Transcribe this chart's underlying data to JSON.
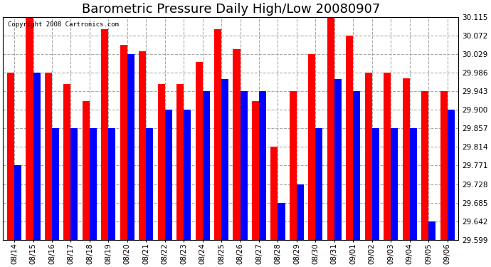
{
  "title": "Barometric Pressure Daily High/Low 20080907",
  "copyright": "Copyright 2008 Cartronics.com",
  "categories": [
    "08/14",
    "08/15",
    "08/16",
    "08/17",
    "08/18",
    "08/19",
    "08/20",
    "08/21",
    "08/22",
    "08/23",
    "08/24",
    "08/25",
    "08/26",
    "08/27",
    "08/28",
    "08/29",
    "08/30",
    "08/31",
    "09/01",
    "09/02",
    "09/03",
    "09/04",
    "09/05",
    "09/06"
  ],
  "highs": [
    29.986,
    30.115,
    29.986,
    29.96,
    29.92,
    30.086,
    30.05,
    30.036,
    29.96,
    29.96,
    30.01,
    30.086,
    30.04,
    29.92,
    29.814,
    29.943,
    30.029,
    30.115,
    30.072,
    29.986,
    29.986,
    29.972,
    29.943,
    29.943
  ],
  "lows": [
    29.771,
    29.986,
    29.857,
    29.857,
    29.857,
    29.857,
    30.029,
    29.857,
    29.9,
    29.9,
    29.943,
    29.971,
    29.943,
    29.943,
    29.685,
    29.728,
    29.857,
    29.971,
    29.943,
    29.857,
    29.857,
    29.857,
    29.642,
    29.9
  ],
  "high_color": "#FF0000",
  "low_color": "#0000FF",
  "bg_color": "#FFFFFF",
  "grid_color": "#AAAAAA",
  "y_ticks": [
    29.599,
    29.642,
    29.685,
    29.728,
    29.771,
    29.814,
    29.857,
    29.9,
    29.943,
    29.986,
    30.029,
    30.072,
    30.115
  ],
  "ylim": [
    29.599,
    30.115
  ],
  "title_fontsize": 13,
  "tick_fontsize": 7.5,
  "bar_width": 0.38
}
